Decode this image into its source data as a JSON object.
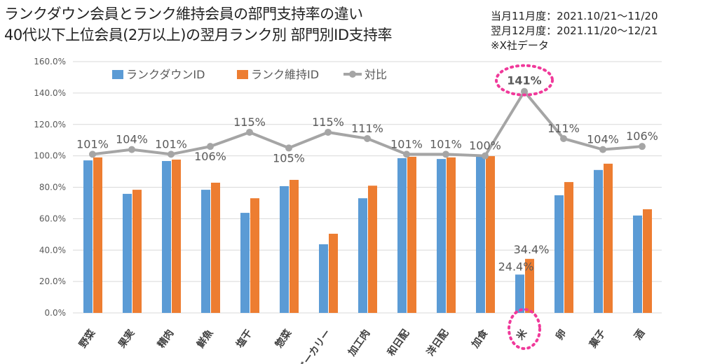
{
  "title_lines": [
    "ランクダウン会員とランク維持会員の部門支持率の違い",
    "40代以下上位会員(2万以上)の翌月ランク別 部門別ID支持率"
  ],
  "notes": [
    "当月11月度：2021.10/21～11/20",
    "翌月12月度：2021.11/20～12/21",
    "※X社データ"
  ],
  "chart_data": {
    "type": "bar",
    "categories": [
      "野菜",
      "果実",
      "精肉",
      "鮮魚",
      "塩干",
      "惣菜",
      "ベーカリー",
      "加工肉",
      "和日配",
      "洋日配",
      "加食",
      "米",
      "卵",
      "菓子",
      "酒"
    ],
    "series": [
      {
        "name": "ランクダウンID",
        "type": "bar",
        "color": "#5B9BD5",
        "values": [
          97.1,
          75.8,
          96.7,
          78.4,
          63.7,
          80.7,
          43.7,
          73.0,
          98.5,
          98.0,
          99.4,
          24.4,
          74.9,
          91.0,
          62.0
        ]
      },
      {
        "name": "ランク維持ID",
        "type": "bar",
        "color": "#ED7D31",
        "values": [
          99.0,
          78.4,
          97.6,
          82.9,
          73.0,
          84.7,
          50.4,
          81.0,
          99.4,
          99.0,
          99.8,
          34.4,
          83.3,
          95.0,
          66.0
        ]
      },
      {
        "name": "対比",
        "type": "line",
        "color": "#A5A5A5",
        "values": [
          101,
          104,
          101,
          106,
          115,
          105,
          115,
          111,
          101,
          101,
          100,
          141,
          111,
          104,
          106
        ]
      }
    ],
    "line_labels": [
      "101%",
      "104%",
      "101%",
      "106%",
      "115%",
      "105%",
      "115%",
      "111%",
      "101%",
      "101%",
      "100%",
      "141%",
      "111%",
      "104%",
      "106%"
    ],
    "bar_labels": {
      "category": "米",
      "blue": "24.4%",
      "orange": "34.4%"
    },
    "ylim": [
      0,
      160
    ],
    "yticks": [
      "0.0%",
      "20.0%",
      "40.0%",
      "60.0%",
      "80.0%",
      "100.0%",
      "120.0%",
      "140.0%",
      "160.0%"
    ],
    "grid": true,
    "legend": "top-left",
    "highlight_category": "米",
    "highlight_color": "#F0399A"
  }
}
